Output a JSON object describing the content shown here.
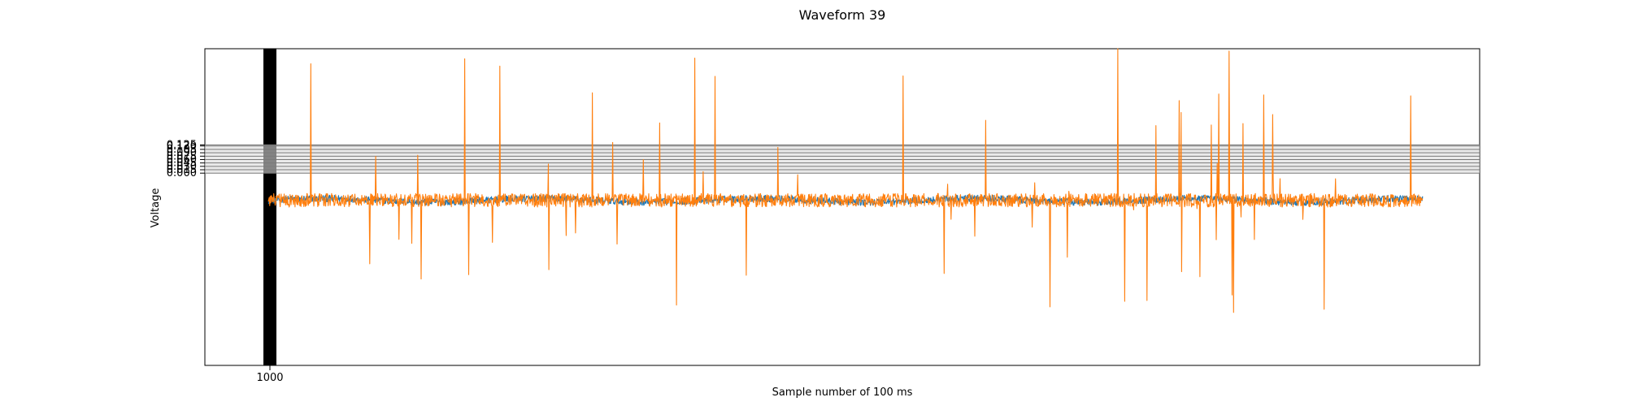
{
  "chart_data": {
    "type": "line",
    "title": "Waveform 39",
    "xlabel": "Sample number of 100 ms",
    "ylabel": "Voltage",
    "x_range": [
      0,
      14000
    ],
    "y_range": [
      -0.85,
      0.55
    ],
    "grid": "horizontal",
    "legend": "none",
    "y_ticks": [
      0.0,
      0.015,
      0.03,
      0.045,
      0.06,
      0.075,
      0.09,
      0.105,
      0.12,
      0.125
    ],
    "y_tick_labels": [
      "0.000",
      "0.015",
      "0.030",
      "0.045",
      "0.060",
      "0.075",
      "0.090",
      "0.105",
      "0.120",
      "0.125"
    ],
    "x_tick_labels": [
      "1000"
    ],
    "series": [
      {
        "color": "#1f77b4",
        "baseline": -0.12,
        "noise_amplitude": 0.03,
        "samples": 14000
      },
      {
        "color": "#ff7f0e",
        "baseline": -0.12,
        "noise_amplitude": 0.06,
        "max_positive_spike": 0.55,
        "max_negative_spike": -0.62,
        "samples": 14000
      }
    ]
  }
}
